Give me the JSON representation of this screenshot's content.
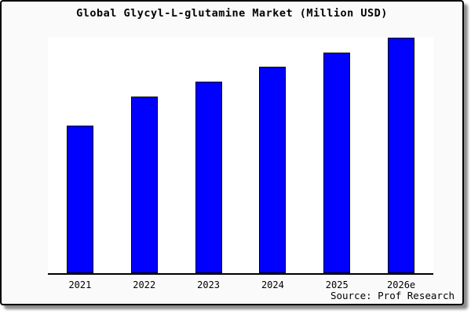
{
  "frame": {
    "background": "#fafafa",
    "border_color": "#000000",
    "plot_background": "#ffffff"
  },
  "chart_data": {
    "type": "bar",
    "title": "Global Glycyl-L-glutamine Market (Million USD)",
    "categories": [
      "2021",
      "2022",
      "2023",
      "2024",
      "2025",
      "2026e"
    ],
    "values": [
      62.7,
      74.9,
      81.2,
      87.6,
      93.8,
      100
    ],
    "value_scale_note": "relative heights, tallest bar (2026e) = 100; no y-axis ticks or gridlines shown",
    "xlabel": "",
    "ylabel": "",
    "ylim": [
      0,
      100
    ],
    "grid": false,
    "legend": false,
    "bar_color": "#0000ff",
    "bar_border_color": "#000000",
    "axis_color": "#000000"
  },
  "source": {
    "label": "Source: Prof Research"
  }
}
